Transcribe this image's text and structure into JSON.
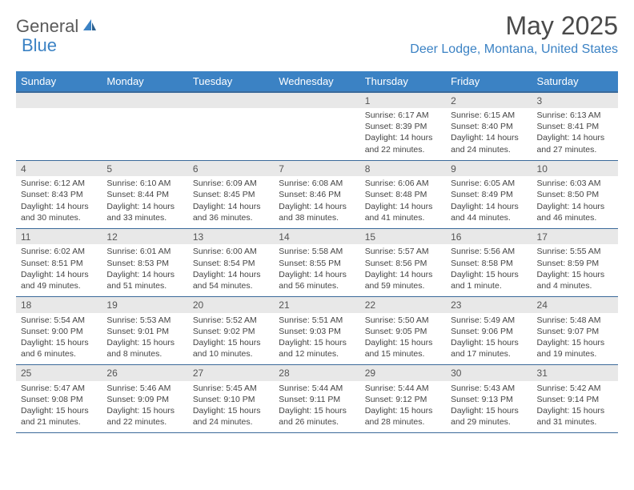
{
  "logo": {
    "part1": "General",
    "part2": "Blue"
  },
  "title": "May 2025",
  "location": "Deer Lodge, Montana, United States",
  "style": {
    "header_bg": "#3b82c4",
    "header_text": "#ffffff",
    "day_row_bg": "#e8e8e8",
    "border_color": "#3b6a9a",
    "accent_color": "#3b82c4",
    "body_text": "#444444",
    "title_fontsize": 32,
    "location_fontsize": 16,
    "dayname_fontsize": 13,
    "daynum_fontsize": 12,
    "detail_fontsize": 10.5
  },
  "day_names": [
    "Sunday",
    "Monday",
    "Tuesday",
    "Wednesday",
    "Thursday",
    "Friday",
    "Saturday"
  ],
  "grid": [
    [
      null,
      null,
      null,
      null,
      {
        "n": "1",
        "sr": "6:17 AM",
        "ss": "8:39 PM",
        "dl": "14 hours and 22 minutes."
      },
      {
        "n": "2",
        "sr": "6:15 AM",
        "ss": "8:40 PM",
        "dl": "14 hours and 24 minutes."
      },
      {
        "n": "3",
        "sr": "6:13 AM",
        "ss": "8:41 PM",
        "dl": "14 hours and 27 minutes."
      }
    ],
    [
      {
        "n": "4",
        "sr": "6:12 AM",
        "ss": "8:43 PM",
        "dl": "14 hours and 30 minutes."
      },
      {
        "n": "5",
        "sr": "6:10 AM",
        "ss": "8:44 PM",
        "dl": "14 hours and 33 minutes."
      },
      {
        "n": "6",
        "sr": "6:09 AM",
        "ss": "8:45 PM",
        "dl": "14 hours and 36 minutes."
      },
      {
        "n": "7",
        "sr": "6:08 AM",
        "ss": "8:46 PM",
        "dl": "14 hours and 38 minutes."
      },
      {
        "n": "8",
        "sr": "6:06 AM",
        "ss": "8:48 PM",
        "dl": "14 hours and 41 minutes."
      },
      {
        "n": "9",
        "sr": "6:05 AM",
        "ss": "8:49 PM",
        "dl": "14 hours and 44 minutes."
      },
      {
        "n": "10",
        "sr": "6:03 AM",
        "ss": "8:50 PM",
        "dl": "14 hours and 46 minutes."
      }
    ],
    [
      {
        "n": "11",
        "sr": "6:02 AM",
        "ss": "8:51 PM",
        "dl": "14 hours and 49 minutes."
      },
      {
        "n": "12",
        "sr": "6:01 AM",
        "ss": "8:53 PM",
        "dl": "14 hours and 51 minutes."
      },
      {
        "n": "13",
        "sr": "6:00 AM",
        "ss": "8:54 PM",
        "dl": "14 hours and 54 minutes."
      },
      {
        "n": "14",
        "sr": "5:58 AM",
        "ss": "8:55 PM",
        "dl": "14 hours and 56 minutes."
      },
      {
        "n": "15",
        "sr": "5:57 AM",
        "ss": "8:56 PM",
        "dl": "14 hours and 59 minutes."
      },
      {
        "n": "16",
        "sr": "5:56 AM",
        "ss": "8:58 PM",
        "dl": "15 hours and 1 minute."
      },
      {
        "n": "17",
        "sr": "5:55 AM",
        "ss": "8:59 PM",
        "dl": "15 hours and 4 minutes."
      }
    ],
    [
      {
        "n": "18",
        "sr": "5:54 AM",
        "ss": "9:00 PM",
        "dl": "15 hours and 6 minutes."
      },
      {
        "n": "19",
        "sr": "5:53 AM",
        "ss": "9:01 PM",
        "dl": "15 hours and 8 minutes."
      },
      {
        "n": "20",
        "sr": "5:52 AM",
        "ss": "9:02 PM",
        "dl": "15 hours and 10 minutes."
      },
      {
        "n": "21",
        "sr": "5:51 AM",
        "ss": "9:03 PM",
        "dl": "15 hours and 12 minutes."
      },
      {
        "n": "22",
        "sr": "5:50 AM",
        "ss": "9:05 PM",
        "dl": "15 hours and 15 minutes."
      },
      {
        "n": "23",
        "sr": "5:49 AM",
        "ss": "9:06 PM",
        "dl": "15 hours and 17 minutes."
      },
      {
        "n": "24",
        "sr": "5:48 AM",
        "ss": "9:07 PM",
        "dl": "15 hours and 19 minutes."
      }
    ],
    [
      {
        "n": "25",
        "sr": "5:47 AM",
        "ss": "9:08 PM",
        "dl": "15 hours and 21 minutes."
      },
      {
        "n": "26",
        "sr": "5:46 AM",
        "ss": "9:09 PM",
        "dl": "15 hours and 22 minutes."
      },
      {
        "n": "27",
        "sr": "5:45 AM",
        "ss": "9:10 PM",
        "dl": "15 hours and 24 minutes."
      },
      {
        "n": "28",
        "sr": "5:44 AM",
        "ss": "9:11 PM",
        "dl": "15 hours and 26 minutes."
      },
      {
        "n": "29",
        "sr": "5:44 AM",
        "ss": "9:12 PM",
        "dl": "15 hours and 28 minutes."
      },
      {
        "n": "30",
        "sr": "5:43 AM",
        "ss": "9:13 PM",
        "dl": "15 hours and 29 minutes."
      },
      {
        "n": "31",
        "sr": "5:42 AM",
        "ss": "9:14 PM",
        "dl": "15 hours and 31 minutes."
      }
    ]
  ],
  "labels": {
    "sunrise": "Sunrise:",
    "sunset": "Sunset:",
    "daylight": "Daylight:"
  }
}
